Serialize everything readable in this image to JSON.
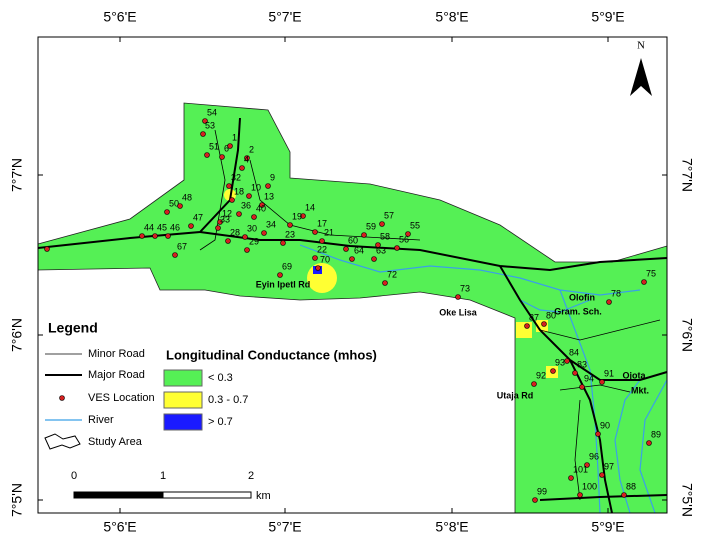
{
  "coordinates": {
    "top": [
      "5°6'E",
      "5°7'E",
      "5°8'E",
      "5°9'E"
    ],
    "bottom": [
      "5°6'E",
      "5°7'E",
      "5°8'E",
      "5°9'E"
    ],
    "left": [
      "7°7'N",
      "7°6'N",
      "7°5'N"
    ],
    "right": [
      "7°7'N",
      "7°6'N",
      "7°5'N"
    ]
  },
  "north": "N",
  "places": [
    "Eyin Ipetl Rd",
    "Oke Lisa",
    "Olofin",
    "Gram. Sch.",
    "Utaja Rd",
    "Ojota",
    "Mkt."
  ],
  "ves_labels": [
    "54",
    "53",
    "1",
    "51",
    "6",
    "2",
    "4",
    "9",
    "32",
    "10",
    "18",
    "13",
    "50",
    "48",
    "36",
    "40",
    "47",
    "12",
    "33",
    "28",
    "29",
    "30",
    "34",
    "14",
    "19",
    "17",
    "57",
    "55",
    "44",
    "45",
    "46",
    "67",
    "23",
    "21",
    "22",
    "60",
    "59",
    "58",
    "56",
    "64",
    "63",
    "69",
    "70",
    "72",
    "73",
    "87",
    "80",
    "78",
    "75",
    "84",
    "93",
    "83",
    "92",
    "94",
    "91",
    "90",
    "89",
    "96",
    "101",
    "97",
    "100",
    "99",
    "88"
  ],
  "legend": {
    "title": "Legend",
    "items": [
      "Minor Road",
      "Major Road",
      "VES Location",
      "River",
      "Study Area"
    ]
  },
  "conductance_legend": {
    "title": "Longitudinal Conductance (mhos)",
    "classes": [
      "< 0.3",
      "0.3 - 0.7",
      "> 0.7"
    ]
  },
  "scale": {
    "ticks": [
      "0",
      "1",
      "2"
    ],
    "unit": "km"
  }
}
